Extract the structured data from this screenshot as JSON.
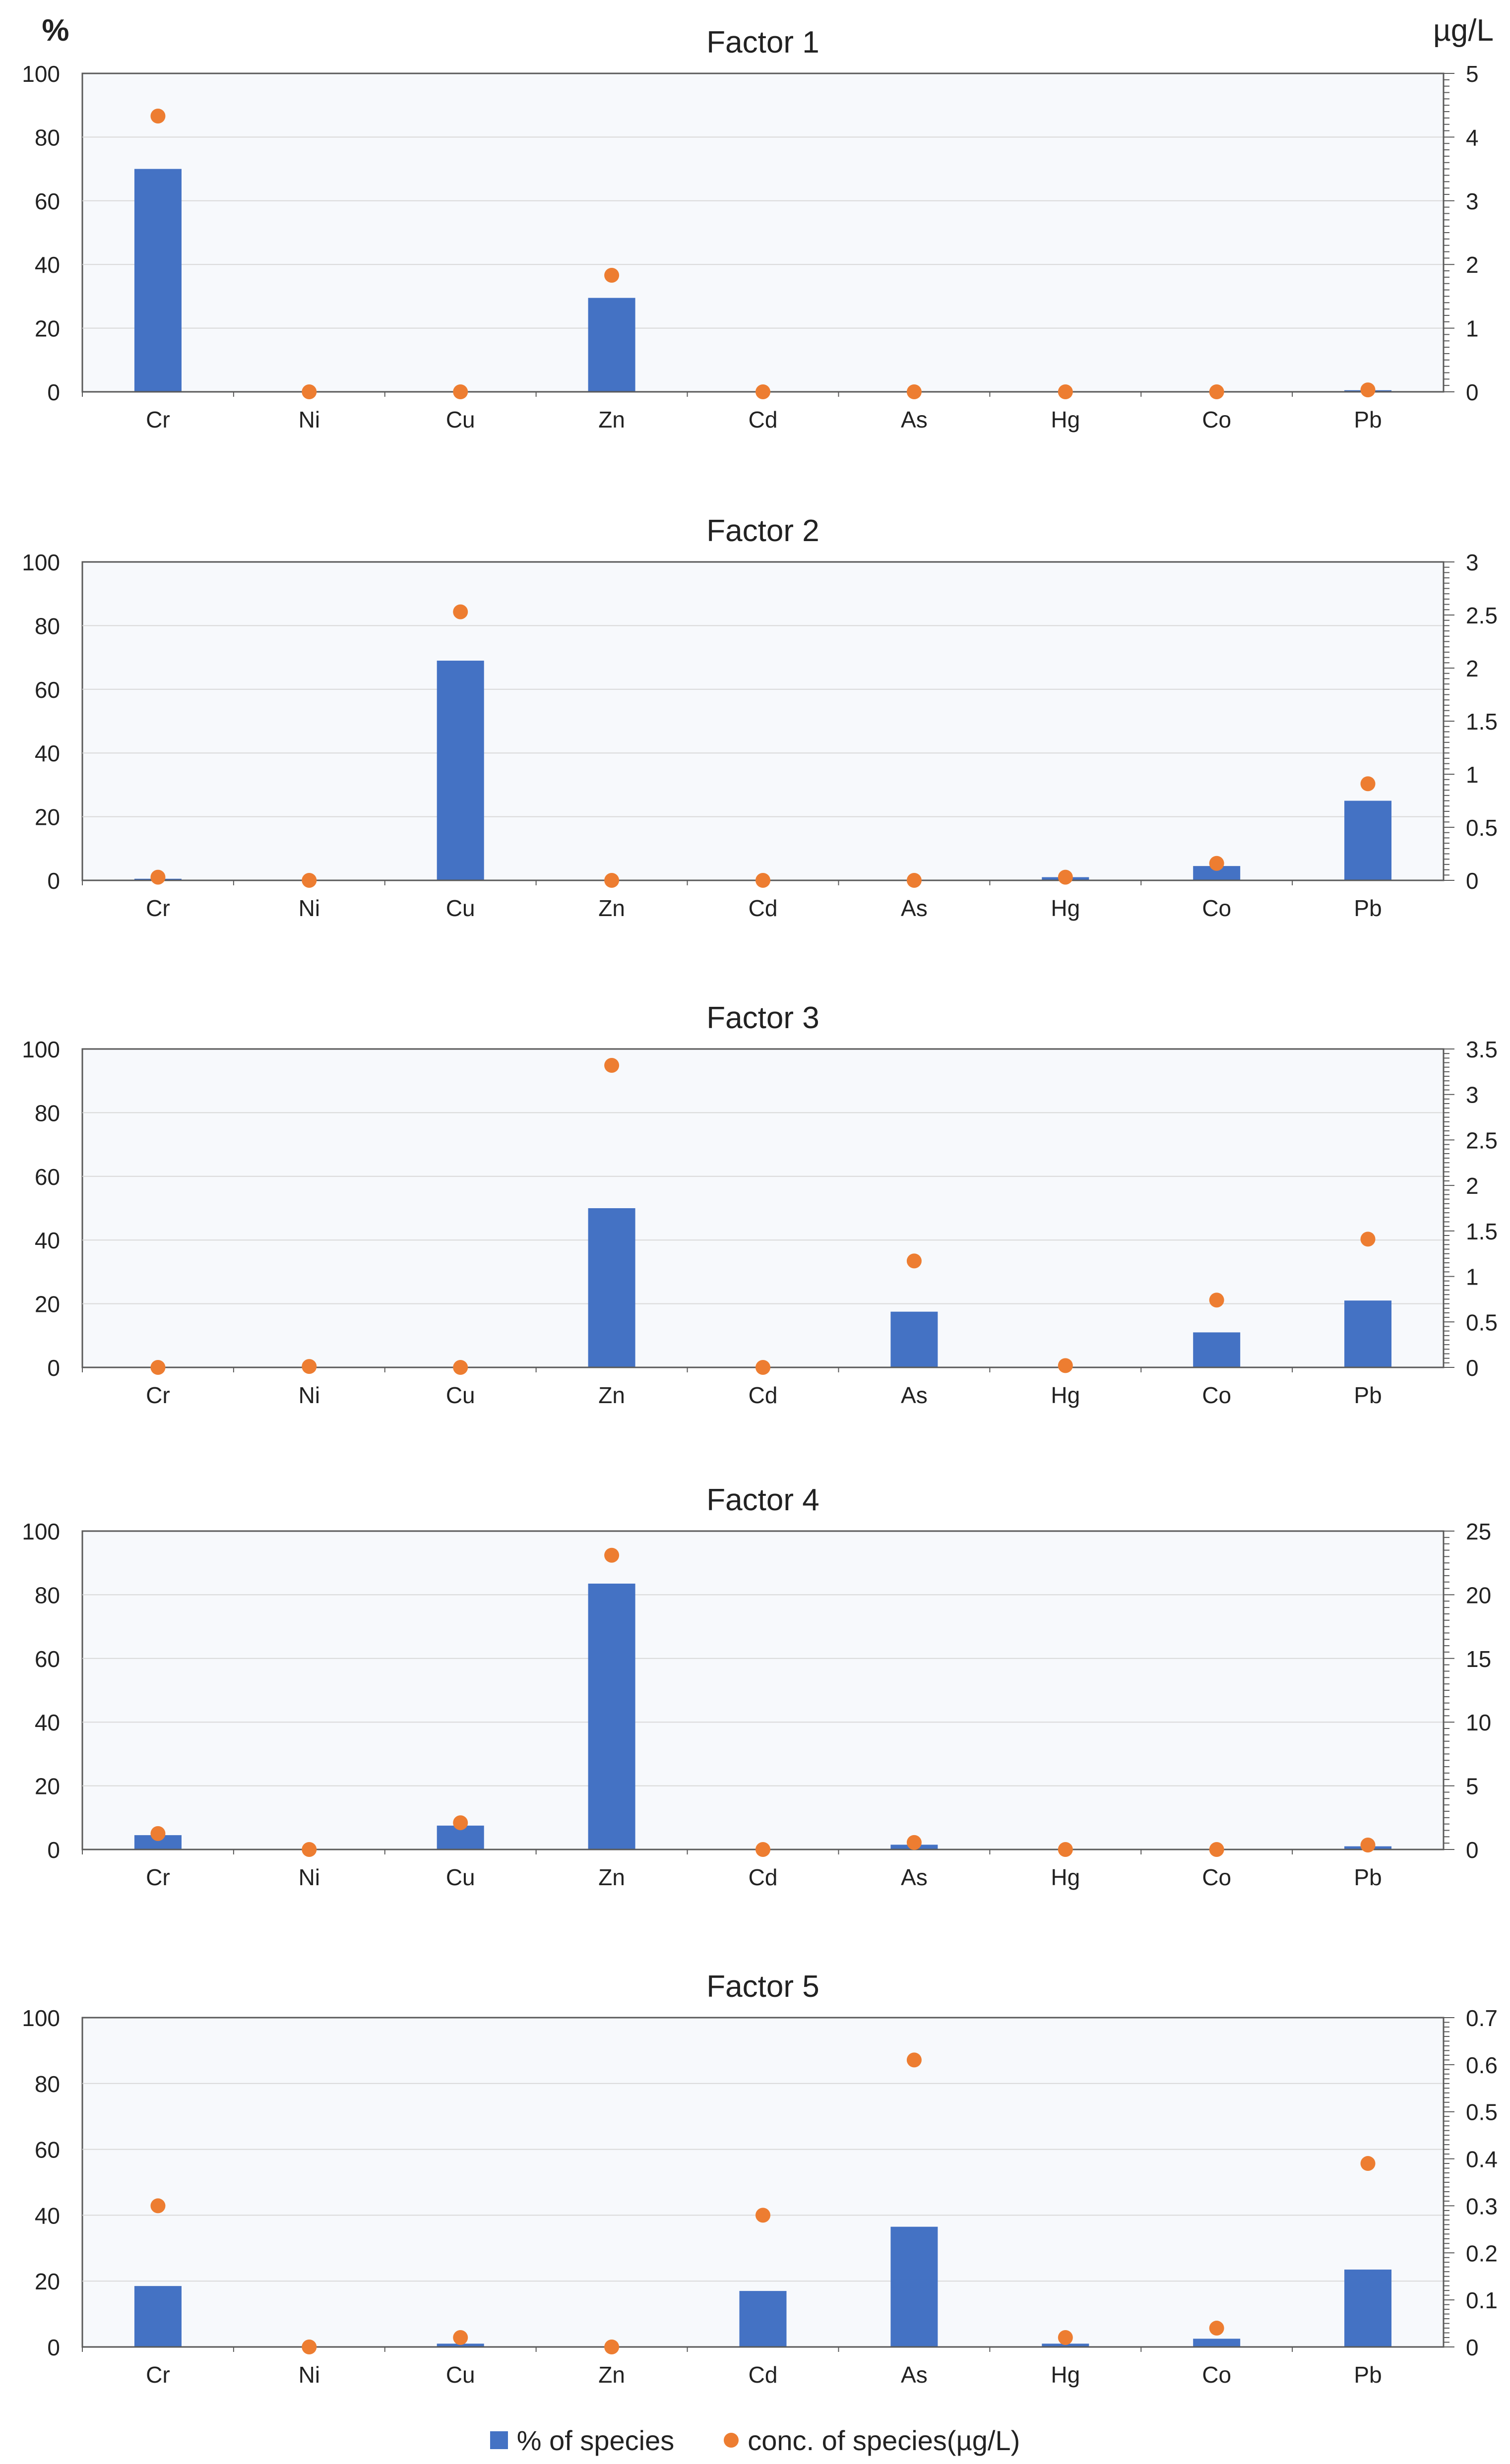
{
  "chart_data": [
    {
      "type": "bar",
      "title": "Factor 1",
      "ylabel": "%",
      "y2label": "µg/L",
      "categories": [
        "Cr",
        "Ni",
        "Cu",
        "Zn",
        "Cd",
        "As",
        "Hg",
        "Co",
        "Pb"
      ],
      "ylim": [
        0,
        100
      ],
      "yticks": [
        0,
        20,
        40,
        60,
        80,
        100
      ],
      "y2lim": [
        0,
        5
      ],
      "y2ticks": [
        "0",
        "1",
        "2",
        "3",
        "4",
        "5"
      ],
      "series": [
        {
          "name": "% of species",
          "axis": "left",
          "kind": "bar",
          "values": [
            70,
            0,
            0,
            29.5,
            0,
            0,
            0,
            0,
            0.5
          ]
        },
        {
          "name": "conc. of species(µg/L)",
          "axis": "right",
          "kind": "scatter",
          "values": [
            4.33,
            0,
            0,
            1.83,
            0,
            0,
            0,
            0,
            0.03
          ]
        }
      ]
    },
    {
      "type": "bar",
      "title": "Factor 2",
      "categories": [
        "Cr",
        "Ni",
        "Cu",
        "Zn",
        "Cd",
        "As",
        "Hg",
        "Co",
        "Pb"
      ],
      "ylim": [
        0,
        100
      ],
      "yticks": [
        0,
        20,
        40,
        60,
        80,
        100
      ],
      "y2lim": [
        0,
        3
      ],
      "y2ticks": [
        "0",
        "0.5",
        "1",
        "1.5",
        "2",
        "2.5",
        "3"
      ],
      "series": [
        {
          "name": "% of species",
          "axis": "left",
          "kind": "bar",
          "values": [
            0.5,
            0,
            69,
            0,
            0,
            0,
            1,
            4.5,
            25
          ]
        },
        {
          "name": "conc. of species(µg/L)",
          "axis": "right",
          "kind": "scatter",
          "values": [
            0.03,
            0,
            2.53,
            0,
            0,
            0,
            0.03,
            0.16,
            0.91
          ]
        }
      ]
    },
    {
      "type": "bar",
      "title": "Factor 3",
      "categories": [
        "Cr",
        "Ni",
        "Cu",
        "Zn",
        "Cd",
        "As",
        "Hg",
        "Co",
        "Pb"
      ],
      "ylim": [
        0,
        100
      ],
      "yticks": [
        0,
        20,
        40,
        60,
        80,
        100
      ],
      "y2lim": [
        0,
        3.5
      ],
      "y2ticks": [
        "0",
        "0.5",
        "1",
        "1.5",
        "2",
        "2.5",
        "3",
        "3.5"
      ],
      "series": [
        {
          "name": "% of species",
          "axis": "left",
          "kind": "bar",
          "values": [
            0,
            0,
            0,
            50,
            0,
            17.5,
            0,
            11,
            21
          ]
        },
        {
          "name": "conc. of species(µg/L)",
          "axis": "right",
          "kind": "scatter",
          "values": [
            0,
            0.01,
            0,
            3.32,
            0,
            1.17,
            0.02,
            0.74,
            1.41
          ]
        }
      ]
    },
    {
      "type": "bar",
      "title": "Factor 4",
      "categories": [
        "Cr",
        "Ni",
        "Cu",
        "Zn",
        "Cd",
        "As",
        "Hg",
        "Co",
        "Pb"
      ],
      "ylim": [
        0,
        100
      ],
      "yticks": [
        0,
        20,
        40,
        60,
        80,
        100
      ],
      "y2lim": [
        0,
        25
      ],
      "y2ticks": [
        "0",
        "5",
        "10",
        "15",
        "20",
        "25"
      ],
      "series": [
        {
          "name": "% of species",
          "axis": "left",
          "kind": "bar",
          "values": [
            4.5,
            0,
            7.5,
            83.5,
            0,
            1.5,
            0,
            0,
            1
          ]
        },
        {
          "name": "conc. of species(µg/L)",
          "axis": "right",
          "kind": "scatter",
          "values": [
            1.25,
            0,
            2.1,
            23.1,
            0,
            0.55,
            0,
            0,
            0.35
          ]
        }
      ]
    },
    {
      "type": "bar",
      "title": "Factor 5",
      "categories": [
        "Cr",
        "Ni",
        "Cu",
        "Zn",
        "Cd",
        "As",
        "Hg",
        "Co",
        "Pb"
      ],
      "ylim": [
        0,
        100
      ],
      "yticks": [
        0,
        20,
        40,
        60,
        80,
        100
      ],
      "y2lim": [
        0,
        0.7
      ],
      "y2ticks": [
        "0",
        "0.1",
        "0.2",
        "0.3",
        "0.4",
        "0.5",
        "0.6",
        "0.7"
      ],
      "series": [
        {
          "name": "% of species",
          "axis": "left",
          "kind": "bar",
          "values": [
            18.5,
            0,
            1,
            0,
            17,
            36.5,
            1,
            2.5,
            23.5
          ]
        },
        {
          "name": "conc. of species(µg/L)",
          "axis": "right",
          "kind": "scatter",
          "values": [
            0.3,
            0,
            0.02,
            0,
            0.28,
            0.61,
            0.02,
            0.04,
            0.39
          ]
        }
      ]
    }
  ],
  "legend": {
    "bar_label": "% of species",
    "dot_label": "conc. of species(µg/L)"
  },
  "colors": {
    "bar": "#4472C4",
    "dot": "#ED7D31",
    "plot_bg": "#F7F9FC",
    "grid": "#D9D9D9",
    "axis": "#595959"
  }
}
